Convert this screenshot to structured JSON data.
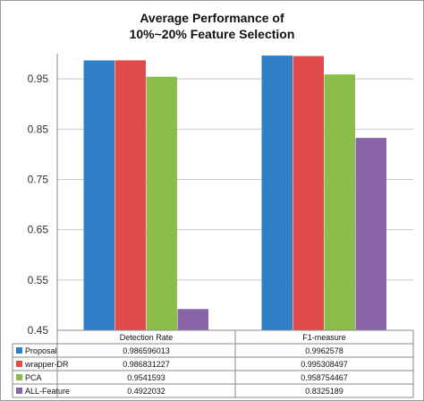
{
  "chart_data": {
    "type": "bar",
    "title_line1": "Average Performance of",
    "title_line2": "10%~20% Feature Selection",
    "categories": [
      "Detection Rate",
      "F1-measure"
    ],
    "ylim": [
      0.45,
      1.0
    ],
    "yticks": [
      0.45,
      0.55,
      0.65,
      0.75,
      0.85,
      0.95
    ],
    "ytick_labels": [
      "0.45",
      "0.55",
      "0.65",
      "0.75",
      "0.85",
      "0.95"
    ],
    "grid": true,
    "legend": "data-table",
    "series": [
      {
        "name": "Proposal",
        "color": "#2f7fc6",
        "values": [
          0.986596013,
          0.9962578
        ],
        "labels": [
          "0.986596013",
          "0.9962578"
        ]
      },
      {
        "name": "wrapper-DR",
        "color": "#de4b4a",
        "values": [
          0.986831227,
          0.995308497
        ],
        "labels": [
          "0.986831227",
          "0.995308497"
        ]
      },
      {
        "name": "PCA",
        "color": "#8bbd4a",
        "values": [
          0.9541593,
          0.958754467
        ],
        "labels": [
          "0.9541593",
          "0.958754467"
        ]
      },
      {
        "name": "ALL-Feature",
        "color": "#8a64a8",
        "values": [
          0.4922032,
          0.8325189
        ],
        "labels": [
          "0.4922032",
          "0.8325189"
        ]
      }
    ]
  }
}
